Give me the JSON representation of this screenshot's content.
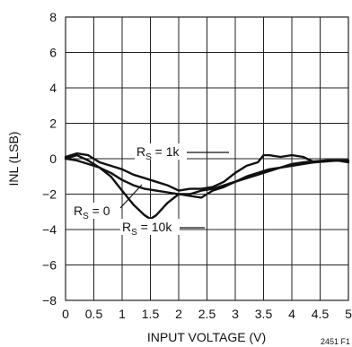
{
  "chart_data": {
    "type": "line",
    "xlabel": "INPUT VOLTAGE (V)",
    "ylabel": "INL (LSB)",
    "xlim": [
      0,
      5
    ],
    "ylim": [
      -8,
      8
    ],
    "x_ticks": [
      0,
      0.5,
      1,
      1.5,
      2,
      2.5,
      3,
      3.5,
      4,
      4.5,
      5
    ],
    "x_tick_labels": [
      "0",
      "0.5",
      "1",
      "1.5",
      "2",
      "2.5",
      "3",
      "3.5",
      "4",
      "4.5",
      "5"
    ],
    "y_ticks": [
      -8,
      -6,
      -4,
      -2,
      0,
      2,
      4,
      6,
      8
    ],
    "y_tick_labels": [
      "−8",
      "−6",
      "−4",
      "−2",
      "0",
      "2",
      "4",
      "6",
      "8"
    ],
    "grid": true,
    "figure_code": "2451 F1",
    "series": [
      {
        "label_main": "R",
        "label_sub": "S",
        "label_rest": " = 1k",
        "x": [
          0,
          0.2,
          0.4,
          0.6,
          0.8,
          1.0,
          1.2,
          1.4,
          1.6,
          1.8,
          2.0,
          2.2,
          2.4,
          2.6,
          2.8,
          3.0,
          3.2,
          3.4,
          3.5,
          3.6,
          3.8,
          4.0,
          4.2,
          4.4,
          4.6,
          4.8,
          5.0
        ],
        "y": [
          0.1,
          0.3,
          0.2,
          -0.2,
          -0.4,
          -0.6,
          -0.9,
          -1.1,
          -1.3,
          -1.5,
          -1.8,
          -1.7,
          -1.7,
          -1.6,
          -1.3,
          -0.8,
          -0.4,
          -0.2,
          0.2,
          0.2,
          0.1,
          0.2,
          0.1,
          -0.2,
          -0.1,
          -0.1,
          -0.2
        ]
      },
      {
        "label_main": "R",
        "label_sub": "S",
        "label_rest": " = 0",
        "x": [
          0,
          0.2,
          0.4,
          0.6,
          0.8,
          1.0,
          1.2,
          1.4,
          1.6,
          1.8,
          2.0,
          2.2,
          2.4,
          2.6,
          2.8,
          3.0,
          3.2,
          3.4,
          3.6,
          3.8,
          4.0,
          4.2,
          4.4,
          4.6,
          4.8,
          5.0
        ],
        "y": [
          0.0,
          -0.1,
          -0.3,
          -0.5,
          -0.8,
          -1.2,
          -1.5,
          -1.7,
          -1.8,
          -1.9,
          -2.0,
          -2.0,
          -1.8,
          -1.7,
          -1.5,
          -1.3,
          -1.1,
          -0.9,
          -0.7,
          -0.5,
          -0.4,
          -0.3,
          -0.2,
          -0.15,
          -0.1,
          -0.1
        ]
      },
      {
        "label_main": "R",
        "label_sub": "S",
        "label_rest": " = 10k",
        "x": [
          0,
          0.2,
          0.4,
          0.6,
          0.8,
          1.0,
          1.2,
          1.4,
          1.5,
          1.6,
          1.8,
          2.0,
          2.2,
          2.4,
          2.6,
          2.8,
          3.0,
          3.2,
          3.4,
          3.6,
          3.8,
          4.0,
          4.2,
          4.4,
          4.6,
          4.8,
          5.0
        ],
        "y": [
          0.0,
          0.2,
          -0.1,
          -0.5,
          -1.0,
          -1.8,
          -2.6,
          -3.2,
          -3.4,
          -3.2,
          -2.5,
          -2.0,
          -2.1,
          -2.2,
          -1.8,
          -1.6,
          -1.3,
          -1.0,
          -0.8,
          -0.6,
          -0.5,
          -0.3,
          -0.2,
          -0.15,
          -0.1,
          -0.1,
          -0.1
        ]
      }
    ]
  },
  "colors": {
    "line": "#111111",
    "grid": "#222222",
    "background": "#ffffff"
  }
}
